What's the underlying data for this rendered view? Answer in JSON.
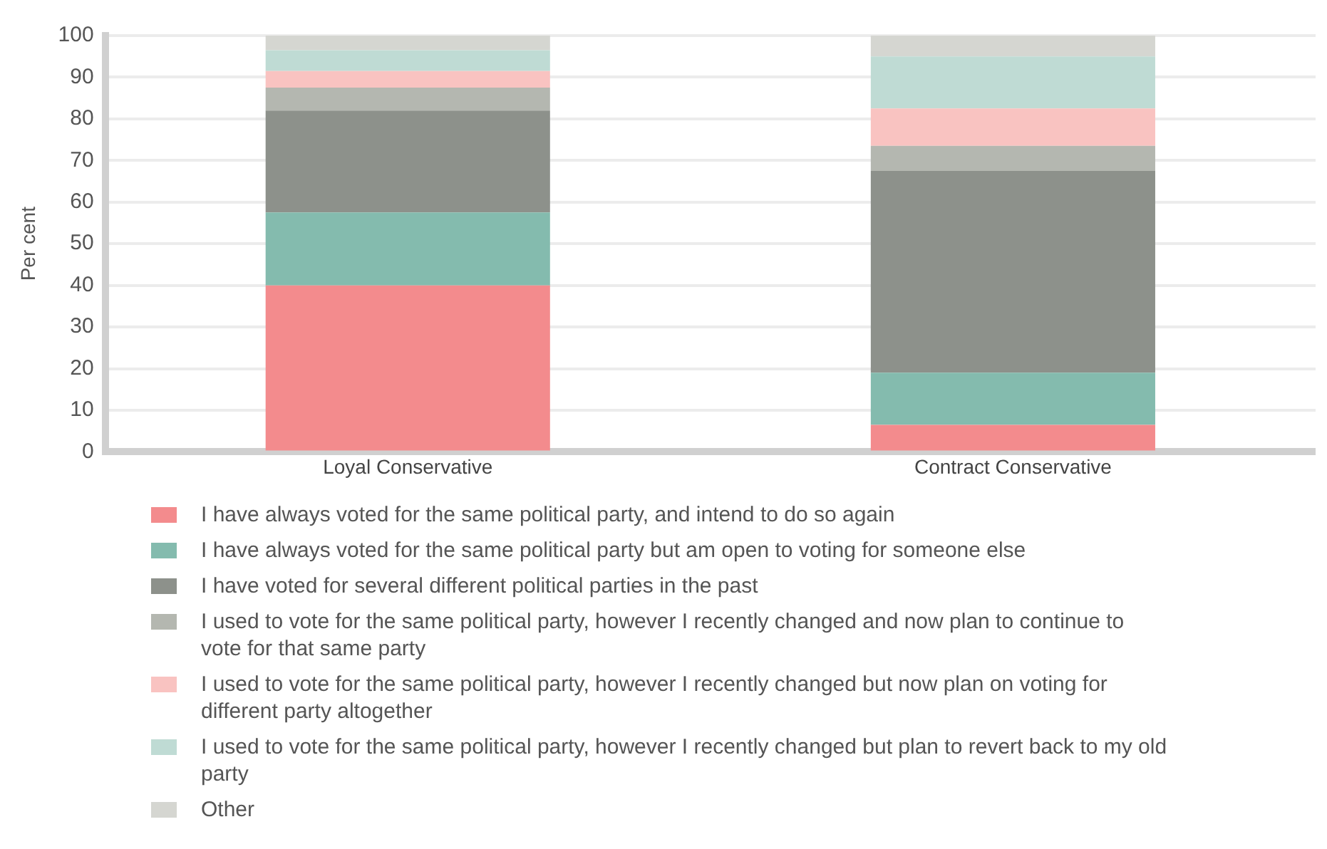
{
  "chart_data": {
    "type": "bar",
    "stacked": true,
    "ylabel": "Per cent",
    "categories": [
      "Loyal Conservative",
      "Contract Conservative"
    ],
    "series": [
      {
        "name": "I have always voted for the same political party, and intend to do so again",
        "color": "#f38b8d",
        "values": [
          40,
          6.5
        ]
      },
      {
        "name": "I have always voted for the same political party but am open to voting for someone else",
        "color": "#84bbae",
        "values": [
          17.5,
          12.5
        ]
      },
      {
        "name": "I have voted for several different political parties in the past",
        "color": "#8d918b",
        "values": [
          24.5,
          48.5
        ]
      },
      {
        "name": "I used to vote for the same political party, however I recently changed and now plan to continue to vote for that same party",
        "color": "#b4b7b0",
        "values": [
          5.5,
          6
        ]
      },
      {
        "name": "I used to vote for the same political party, however I recently changed but now plan on voting for different party altogether",
        "color": "#f9c3c1",
        "values": [
          4,
          9
        ]
      },
      {
        "name": "I used to vote for the same political party, however I recently changed but plan to revert back to my old party",
        "color": "#bfdbd4",
        "values": [
          5,
          12.5
        ]
      },
      {
        "name": "Other",
        "color": "#d5d6d1",
        "values": [
          3.5,
          5
        ]
      }
    ],
    "ylim": [
      0,
      100
    ],
    "yticks": [
      0,
      10,
      20,
      30,
      40,
      50,
      60,
      70,
      80,
      90,
      100
    ],
    "grid": "y",
    "legend": "bottom"
  }
}
